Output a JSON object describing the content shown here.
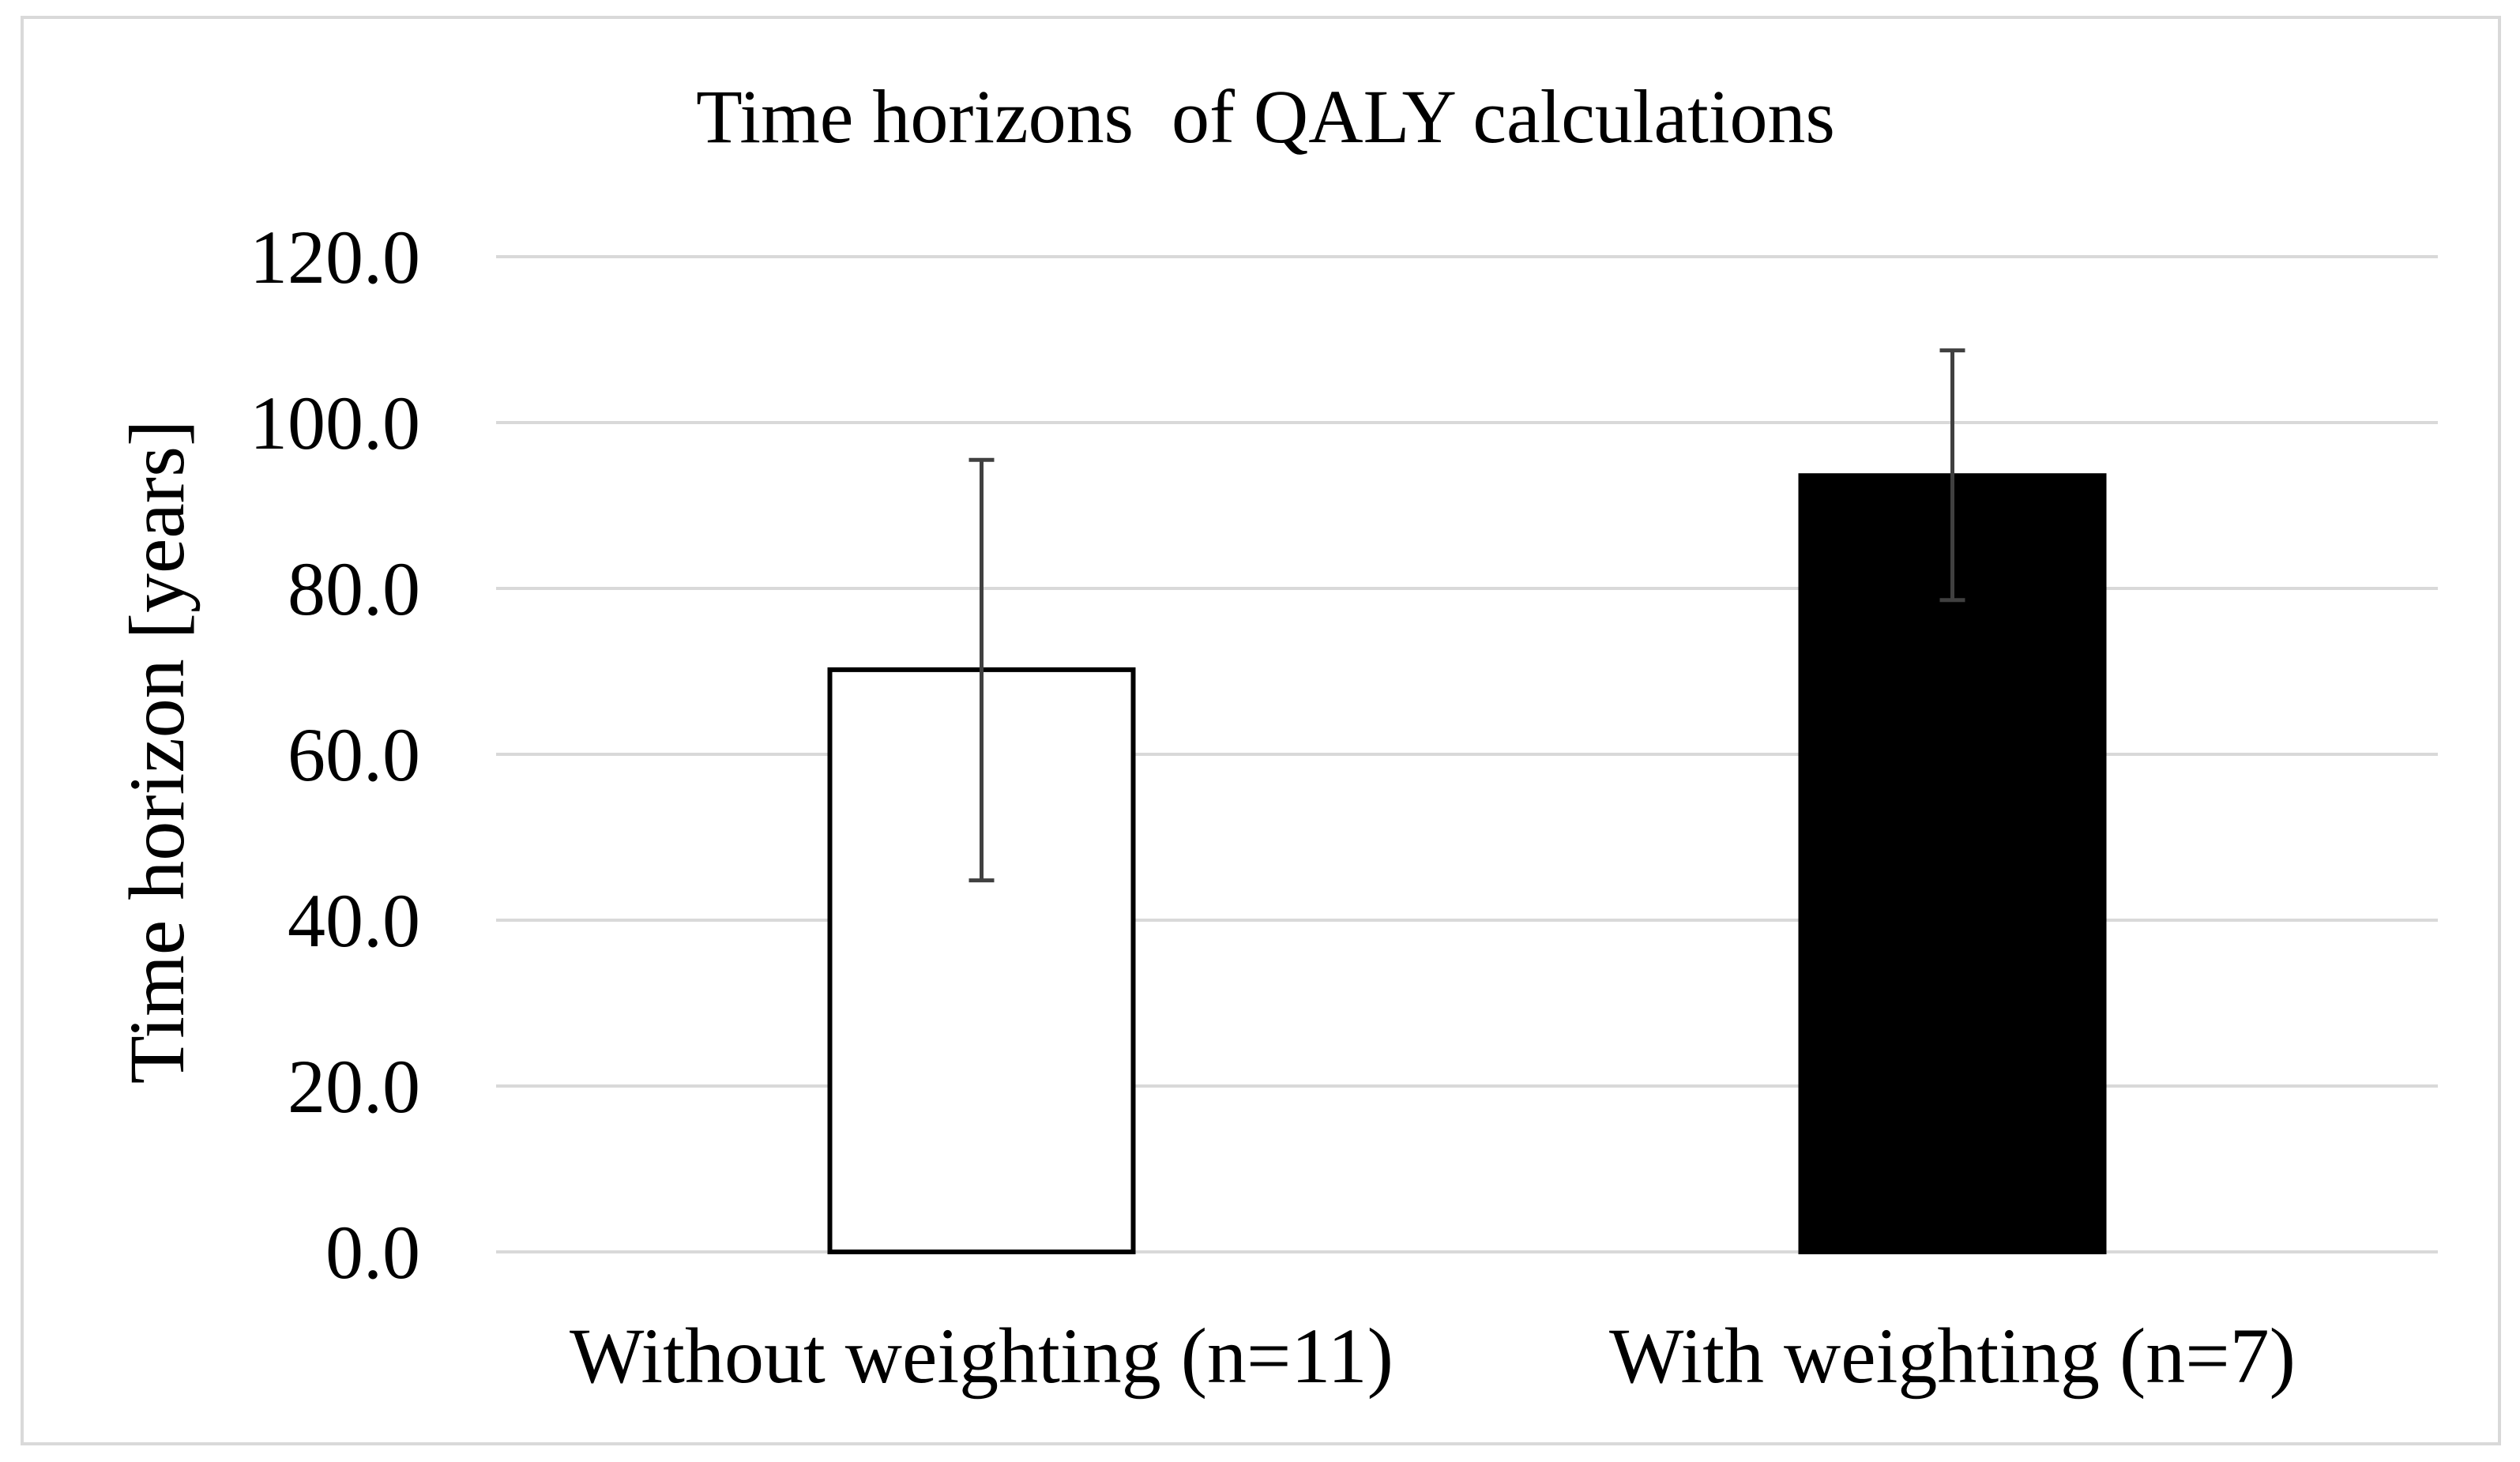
{
  "chart_data": {
    "type": "bar",
    "title": "Time horizons  of QALY calculations",
    "xlabel": "",
    "ylabel": "Time horizon [years]",
    "ylim": [
      0,
      120
    ],
    "yticks": [
      0,
      20,
      40,
      60,
      80,
      100,
      120
    ],
    "ytick_labels": [
      "0.0",
      "20.0",
      "40.0",
      "60.0",
      "80.0",
      "100.0",
      "120.0"
    ],
    "grid": true,
    "legend": "none",
    "categories": [
      "Without weighting (n=11)",
      "With weighting (n=7)"
    ],
    "values": [
      70.2,
      93.6
    ],
    "error_upper": [
      95.5,
      108.7
    ],
    "error_lower": [
      44.8,
      78.6
    ],
    "bar_colors": [
      "#ffffff",
      "#000000"
    ]
  }
}
